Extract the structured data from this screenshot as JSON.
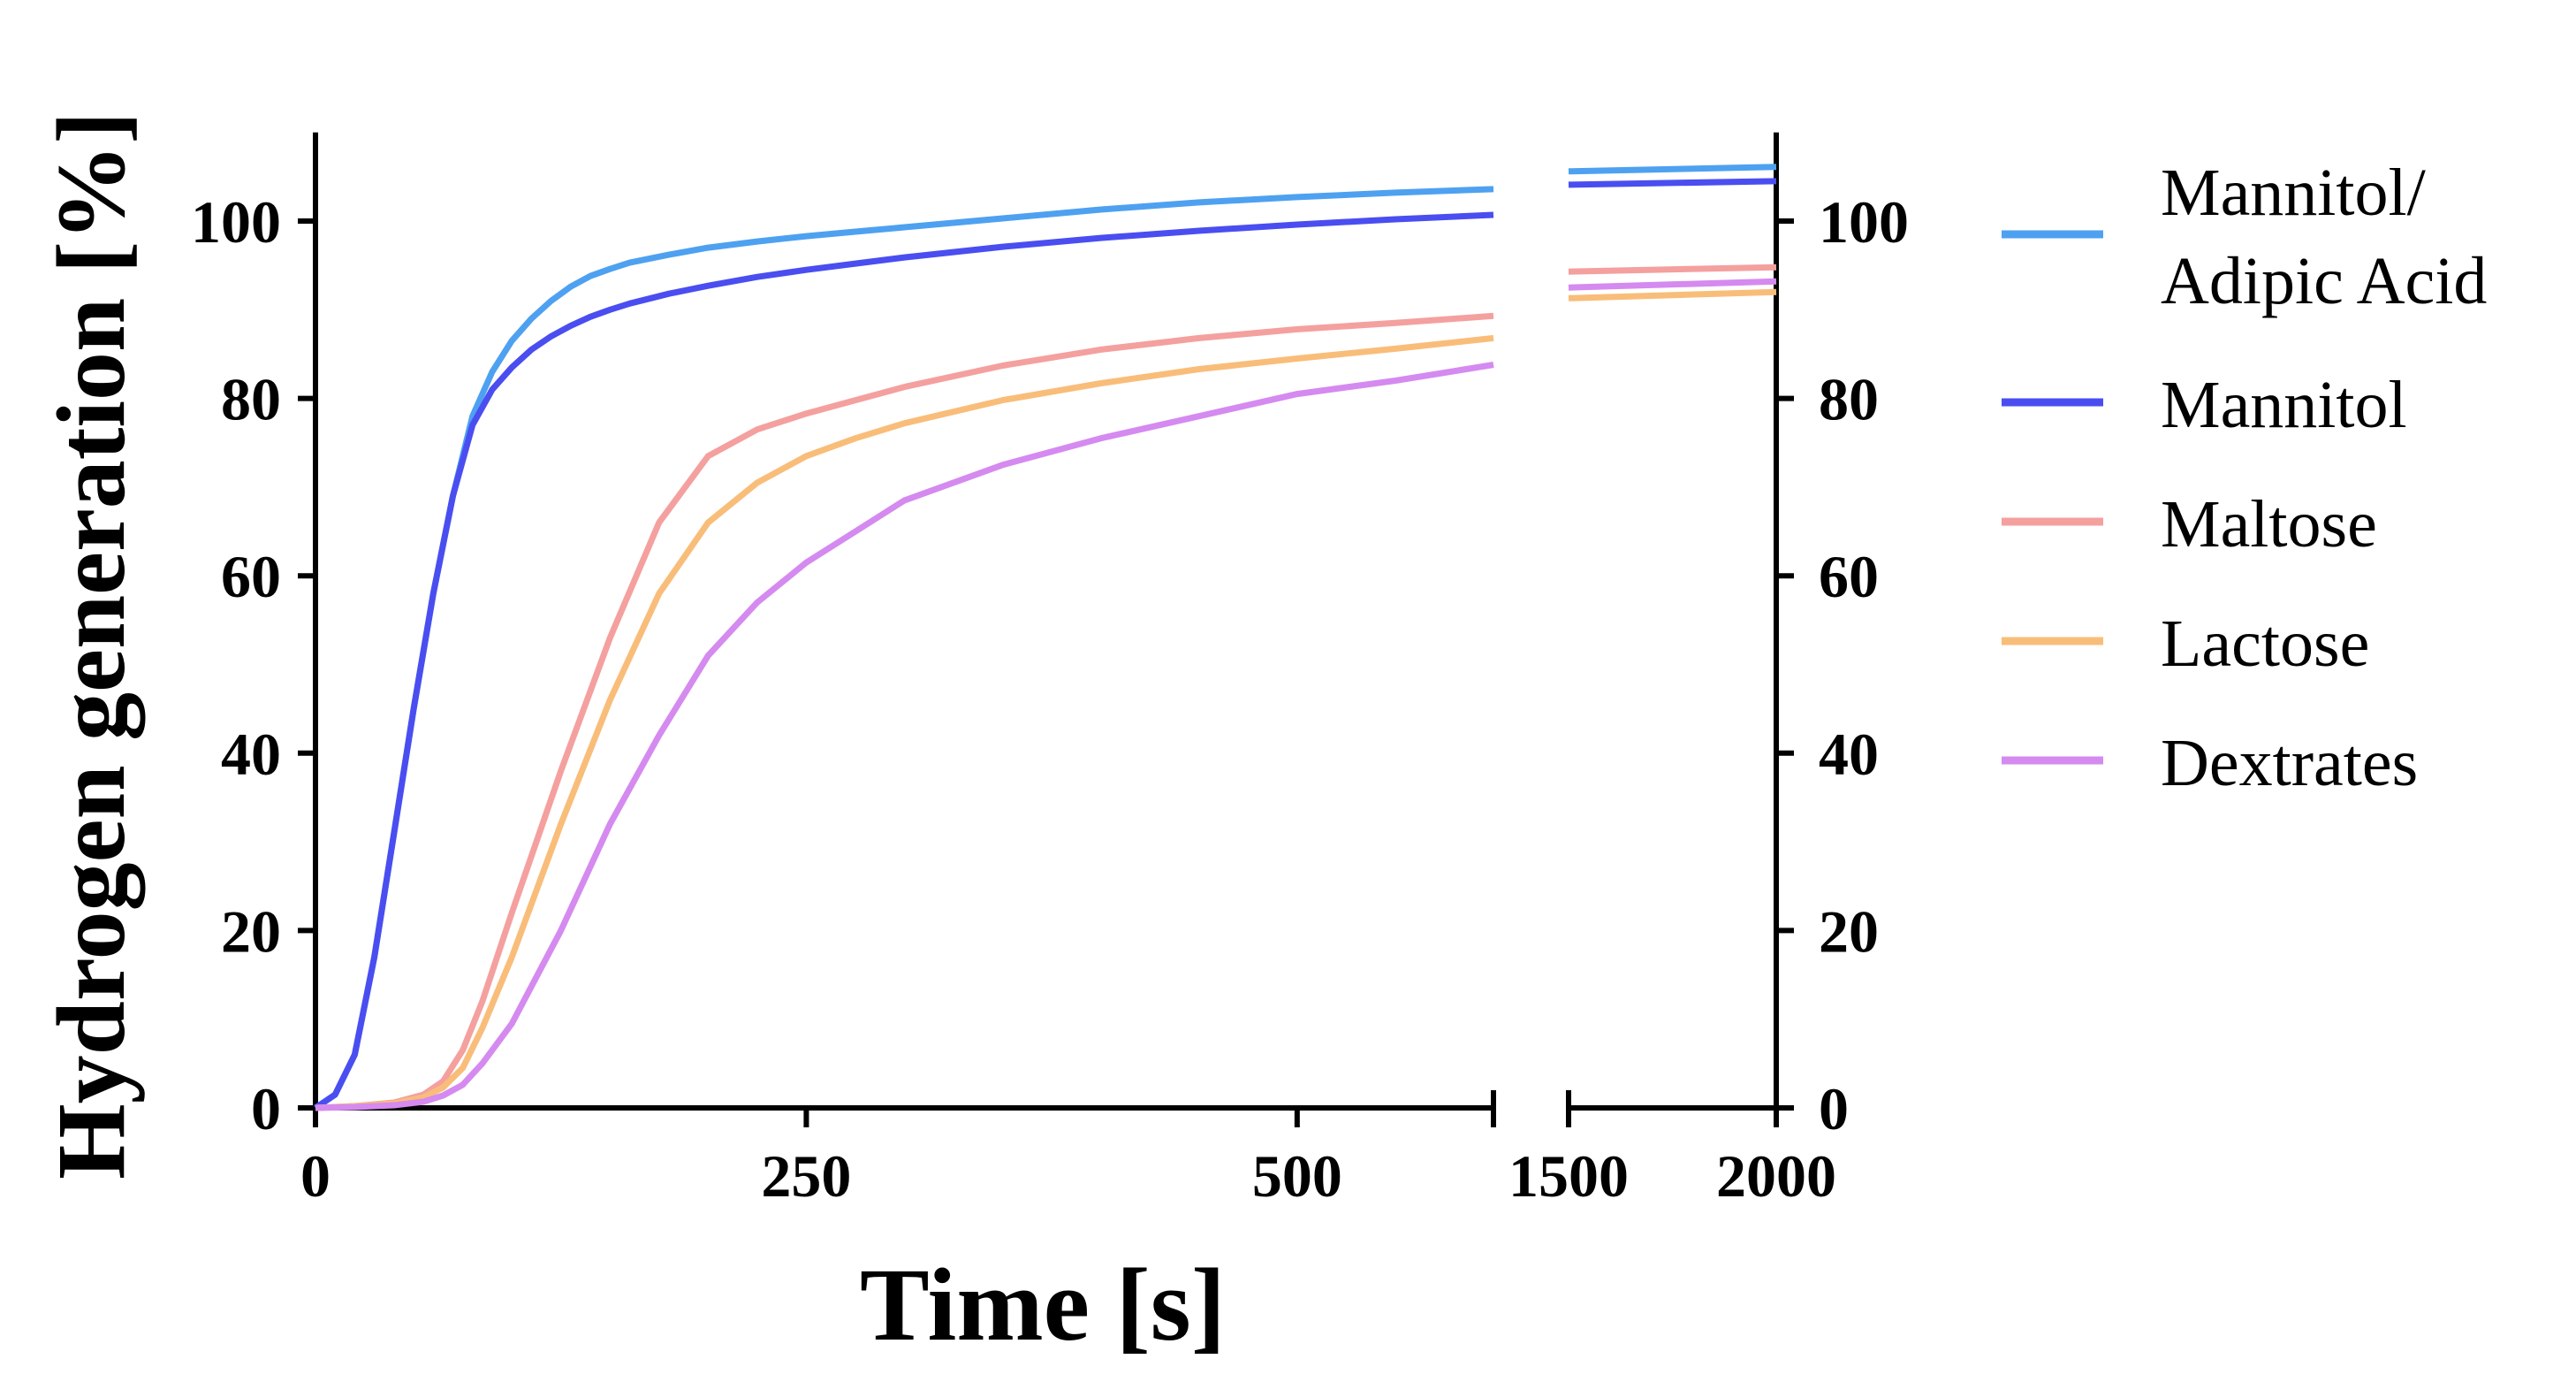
{
  "chart_data": {
    "type": "line",
    "title": "",
    "xlabel": "Time [s]",
    "ylabel": "Hydrogen generation [%]",
    "ylim": [
      0,
      110
    ],
    "yticks": [
      0,
      20,
      40,
      60,
      80,
      100
    ],
    "ytick_labels": [
      "0",
      "20",
      "40",
      "60",
      "80",
      "100"
    ],
    "x_segments": [
      {
        "xlim": [
          0,
          600
        ],
        "ticks": [
          0,
          250,
          500
        ],
        "tick_labels": [
          "0",
          "250",
          "500"
        ]
      },
      {
        "xlim": [
          1500,
          2000
        ],
        "ticks": [
          1500,
          2000
        ],
        "tick_labels": [
          "1500",
          "2000"
        ]
      }
    ],
    "grid": false,
    "legend_position": "right",
    "series": [
      {
        "name": "Mannitol/ Adipic Acid",
        "legend_lines": [
          "Mannitol/",
          "Adipic Acid"
        ],
        "color": "#4ea1f0",
        "x": [
          0,
          10,
          20,
          30,
          40,
          50,
          60,
          70,
          80,
          90,
          100,
          110,
          120,
          130,
          140,
          150,
          160,
          180,
          200,
          225,
          250,
          275,
          300,
          325,
          350,
          400,
          450,
          500,
          550,
          600,
          1500,
          2000
        ],
        "y": [
          0,
          1.5,
          6,
          17,
          31,
          45,
          58,
          69,
          78,
          83,
          86.5,
          89,
          91,
          92.6,
          93.8,
          94.6,
          95.3,
          96.2,
          97,
          97.7,
          98.3,
          98.8,
          99.3,
          99.8,
          100.3,
          101.3,
          102.1,
          102.7,
          103.2,
          103.6,
          105.6,
          106.1
        ]
      },
      {
        "name": "Mannitol",
        "legend_lines": [
          "Mannitol"
        ],
        "color": "#4a4ef0",
        "x": [
          0,
          10,
          20,
          30,
          40,
          50,
          60,
          70,
          80,
          90,
          100,
          110,
          120,
          130,
          140,
          150,
          160,
          180,
          200,
          225,
          250,
          275,
          300,
          325,
          350,
          400,
          450,
          500,
          550,
          600,
          1500,
          2000
        ],
        "y": [
          0,
          1.5,
          6,
          17,
          31,
          45,
          58,
          69,
          77,
          81,
          83.5,
          85.5,
          87,
          88.2,
          89.2,
          90,
          90.7,
          91.8,
          92.7,
          93.7,
          94.5,
          95.2,
          95.9,
          96.5,
          97.1,
          98.1,
          98.9,
          99.6,
          100.2,
          100.7,
          104.1,
          104.5
        ]
      },
      {
        "name": "Maltose",
        "legend_lines": [
          "Maltose"
        ],
        "color": "#f4a09f",
        "x": [
          0,
          20,
          40,
          55,
          65,
          75,
          85,
          100,
          125,
          150,
          175,
          200,
          225,
          250,
          275,
          300,
          350,
          400,
          450,
          500,
          550,
          600,
          1500,
          2000
        ],
        "y": [
          0,
          0.2,
          0.6,
          1.5,
          3,
          6.5,
          12,
          22,
          38,
          53,
          66,
          73.5,
          76.5,
          78.3,
          79.8,
          81.3,
          83.7,
          85.5,
          86.8,
          87.8,
          88.5,
          89.3,
          94.3,
          94.8
        ]
      },
      {
        "name": "Lactose",
        "legend_lines": [
          "Lactose"
        ],
        "color": "#f9bd7a",
        "x": [
          0,
          20,
          40,
          55,
          65,
          75,
          85,
          100,
          125,
          150,
          175,
          200,
          225,
          250,
          275,
          300,
          350,
          400,
          450,
          500,
          550,
          600,
          1500,
          2000
        ],
        "y": [
          0,
          0.2,
          0.5,
          1.2,
          2.3,
          4.5,
          9,
          17,
          32,
          46,
          58,
          66,
          70.5,
          73.5,
          75.5,
          77.2,
          79.8,
          81.7,
          83.3,
          84.5,
          85.6,
          86.8,
          91.3,
          92
        ]
      },
      {
        "name": "Dextrates",
        "legend_lines": [
          "Dextrates"
        ],
        "color": "#d58af0",
        "x": [
          0,
          20,
          40,
          55,
          65,
          75,
          85,
          100,
          125,
          150,
          175,
          200,
          225,
          250,
          275,
          300,
          350,
          400,
          450,
          500,
          550,
          600,
          1500,
          2000
        ],
        "y": [
          0,
          0.1,
          0.3,
          0.7,
          1.4,
          2.6,
          5,
          9.5,
          20,
          32,
          42,
          51,
          57,
          61.5,
          65,
          68.5,
          72.5,
          75.5,
          78,
          80.5,
          82,
          83.8,
          92.5,
          93.2
        ]
      }
    ]
  }
}
